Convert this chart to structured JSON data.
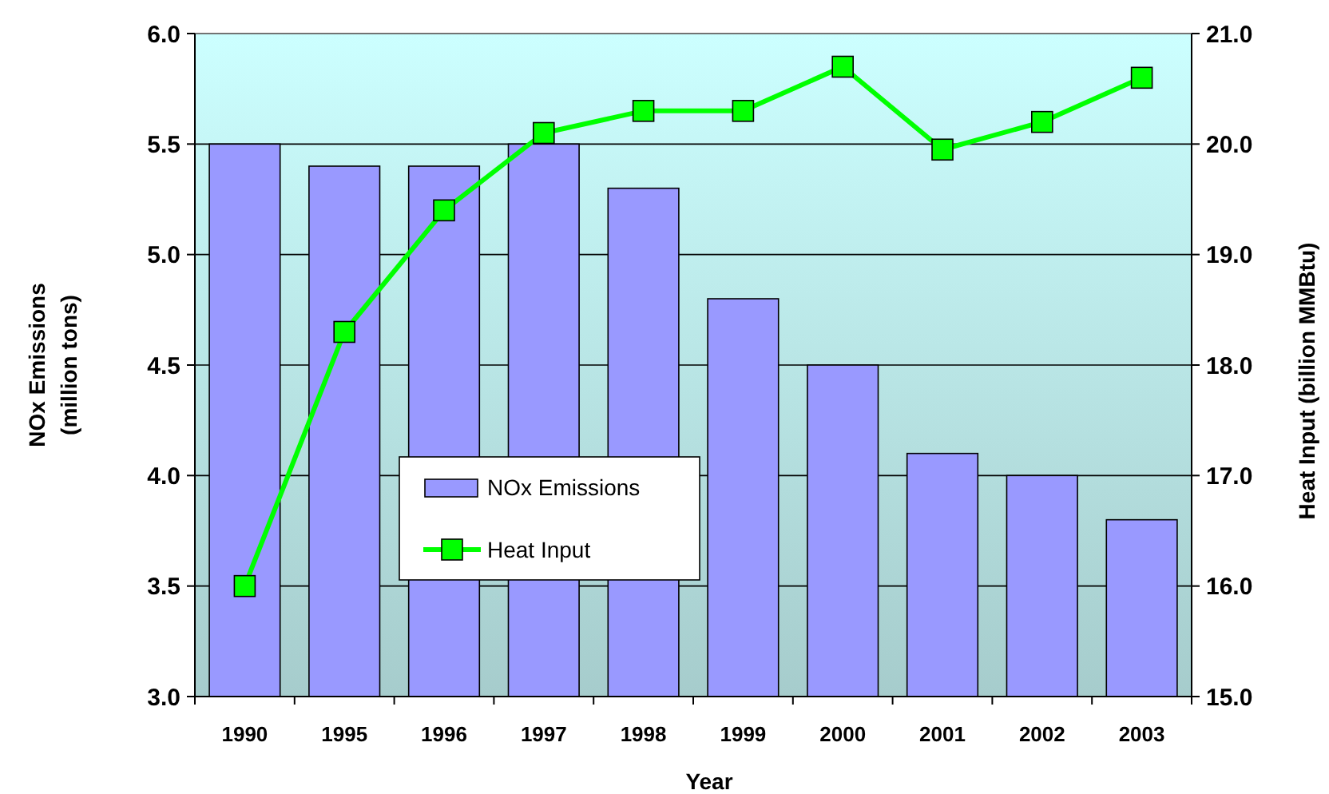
{
  "chart_data": {
    "type": "bar",
    "xlabel": "Year",
    "ylabel": "NOx Emissions\n(million tons)",
    "y2label": "Heat Input (billion MMBtu)",
    "categories": [
      "1990",
      "1995",
      "1996",
      "1997",
      "1998",
      "1999",
      "2000",
      "2001",
      "2002",
      "2003"
    ],
    "series": [
      {
        "name": "NOx Emissions",
        "color": "#9999ff",
        "values": [
          5.5,
          5.4,
          5.4,
          5.5,
          5.3,
          4.8,
          4.5,
          4.1,
          4.0,
          3.8
        ]
      },
      {
        "name": "Heat Input",
        "type": "line",
        "axis": "y2",
        "color": "#00ff00",
        "marker": "square",
        "values": [
          16.0,
          18.3,
          19.4,
          20.1,
          20.3,
          20.3,
          20.7,
          19.95,
          20.2,
          20.6
        ]
      }
    ],
    "ylim": [
      3.0,
      6.0
    ],
    "yticks": [
      {
        "value": 3,
        "label": "3.0"
      },
      3.5,
      {
        "value": 4,
        "label": "4.0"
      },
      4.5,
      {
        "value": 5,
        "label": "5.0"
      },
      5.5,
      {
        "value": 6,
        "label": "6.0"
      }
    ],
    "y2lim": [
      15.0,
      21.0
    ],
    "y2ticks": [
      {
        "value": 15,
        "label": "15.0"
      },
      {
        "value": 16,
        "label": "16.0"
      },
      {
        "value": 17,
        "label": "17.0"
      },
      {
        "value": 18,
        "label": "18.0"
      },
      {
        "value": 19,
        "label": "19.0"
      },
      {
        "value": 20,
        "label": "20.0"
      },
      {
        "value": 21,
        "label": "21.0"
      }
    ],
    "grid": "y",
    "legend": "bottom left"
  }
}
